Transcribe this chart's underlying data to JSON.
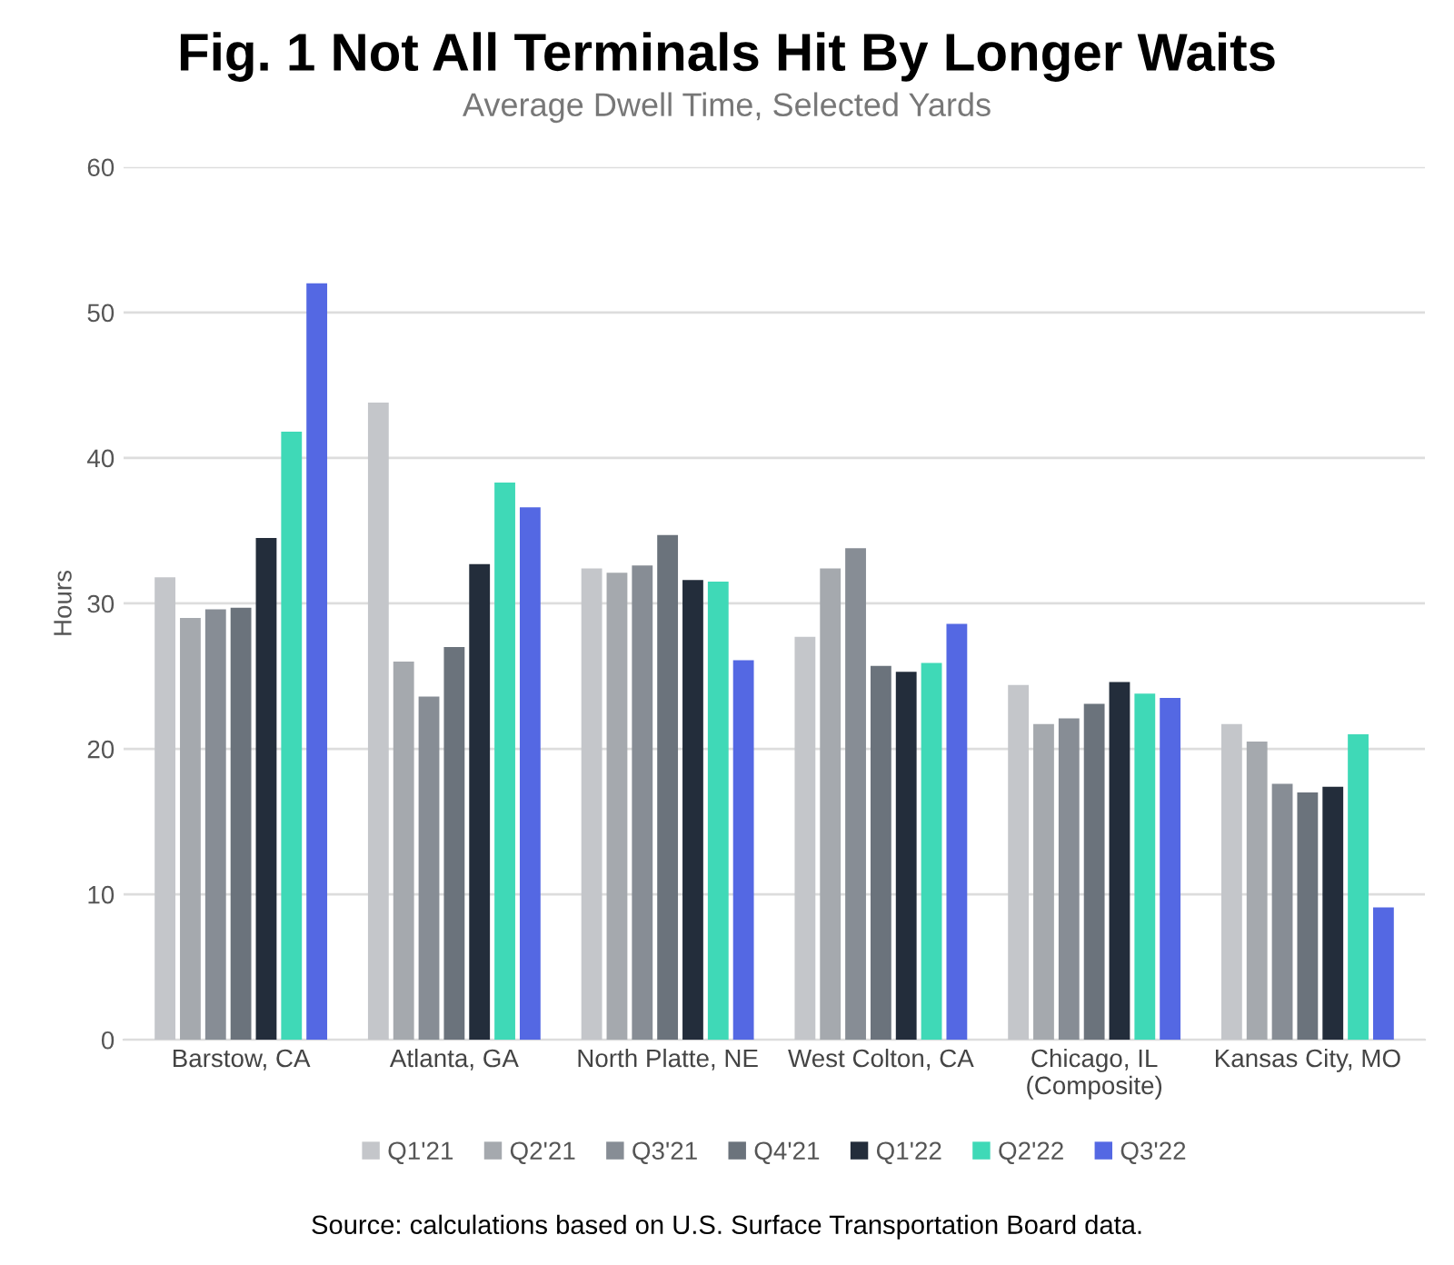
{
  "chart_data": {
    "type": "bar",
    "title": "Fig. 1 Not All Terminals Hit By Longer Waits",
    "subtitle": "Average Dwell Time, Selected Yards",
    "ylabel": "Hours",
    "categories": [
      "Barstow, CA",
      "Atlanta, GA",
      "North Platte, NE",
      "West Colton, CA",
      "Chicago, IL\n(Composite)",
      "Kansas City, MO"
    ],
    "series": [
      {
        "name": "Q1'21",
        "color": "#c4c6ca",
        "values": [
          31.8,
          43.8,
          32.4,
          27.7,
          24.4,
          21.7
        ]
      },
      {
        "name": "Q2'21",
        "color": "#a5a9ae",
        "values": [
          29.0,
          26.0,
          32.1,
          32.4,
          21.7,
          20.5
        ]
      },
      {
        "name": "Q3'21",
        "color": "#878d95",
        "values": [
          29.6,
          23.6,
          32.6,
          33.8,
          22.1,
          17.6
        ]
      },
      {
        "name": "Q4'21",
        "color": "#6b737c",
        "values": [
          29.7,
          27.0,
          34.7,
          25.7,
          23.1,
          17.0
        ]
      },
      {
        "name": "Q1'22",
        "color": "#232d3b",
        "values": [
          34.5,
          32.7,
          31.6,
          25.3,
          24.6,
          17.4
        ]
      },
      {
        "name": "Q2'22",
        "color": "#3fd9b7",
        "values": [
          41.8,
          38.3,
          31.5,
          25.9,
          23.8,
          21.0
        ]
      },
      {
        "name": "Q3'22",
        "color": "#5468e3",
        "values": [
          52.0,
          36.6,
          26.1,
          28.6,
          23.5,
          9.1
        ]
      }
    ],
    "ylim": [
      0,
      60
    ],
    "yticks": [
      0,
      10,
      20,
      30,
      40,
      50,
      60
    ],
    "grid": "y",
    "legend": "bottom",
    "annotations": [
      "Source: calculations based on U.S. Surface Transportation Board data."
    ]
  }
}
